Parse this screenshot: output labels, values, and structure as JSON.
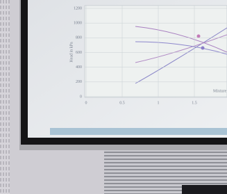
{
  "screen": {
    "y_axis_label": "Head in kPa",
    "x_axis_label": "Mixture",
    "yticks": [
      0,
      200,
      400,
      600,
      800,
      1000,
      1200
    ],
    "xticks": [
      0,
      0.5,
      1,
      1.5
    ]
  }
}
